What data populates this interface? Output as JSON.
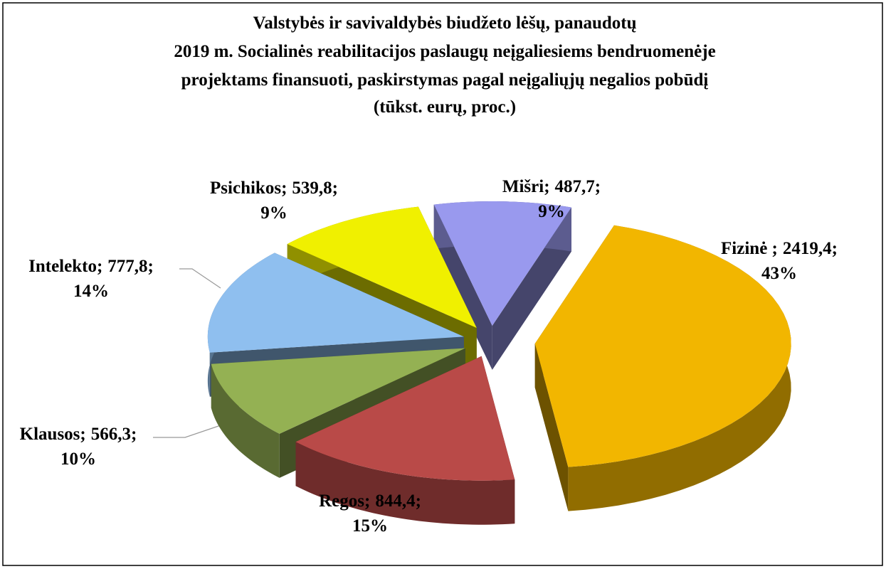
{
  "chart_data": {
    "type": "pie3d",
    "title": [
      "Valstybės ir savivaldybės biudžeto lėšų, panaudotų",
      "2019 m. Socialinės reabilitacijos paslaugų neįgaliesiems bendruomenėje",
      "projektams finansuoti, paskirstymas pagal neįgaliųjų negalios pobūdį",
      "(tūkst. eurų, proc.)"
    ],
    "categories": [
      "Fizinė ",
      "Regos",
      "Klausos",
      "Intelekto",
      "Psichikos",
      "Mišri"
    ],
    "values": [
      2419.4,
      844.4,
      566.3,
      777.8,
      539.8,
      487.7
    ],
    "value_labels": [
      "2419,4",
      "844,4",
      "566,3",
      "777,8",
      "539,8",
      "487,7"
    ],
    "percents": [
      43,
      15,
      10,
      14,
      9,
      9
    ],
    "percent_labels": [
      "43%",
      "15%",
      "10%",
      "14%",
      "9%",
      "9%"
    ],
    "label_separator": ";",
    "colors": [
      "#f2b600",
      "#b94a48",
      "#94b153",
      "#8fbfef",
      "#f0f000",
      "#9999ee"
    ]
  }
}
